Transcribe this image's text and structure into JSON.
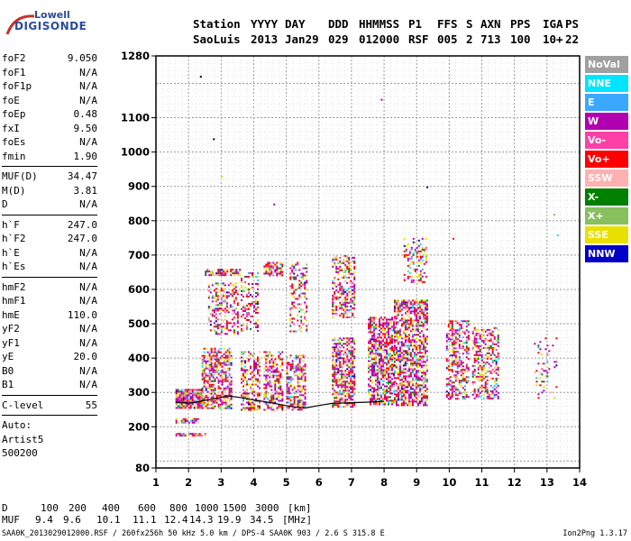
{
  "logo": {
    "line1": "Lowell",
    "line2": "DIGISONDE"
  },
  "header": {
    "labels": [
      "Station",
      "YYYY",
      "DAY",
      "DDD",
      "HHMMSS",
      "P1",
      "FFS",
      "S",
      "AXN",
      "PPS",
      "IGA",
      "PS"
    ],
    "values": [
      "SaoLuis",
      "2013",
      "Jan29",
      "029",
      "012000",
      "RSF",
      "005",
      "2",
      "713",
      "100",
      "10+",
      "22"
    ]
  },
  "params": {
    "group1": [
      {
        "label": "foF2",
        "value": "9.050"
      },
      {
        "label": "foF1",
        "value": "N/A"
      },
      {
        "label": "foF1p",
        "value": "N/A"
      },
      {
        "label": "foE",
        "value": "N/A"
      },
      {
        "label": "foEp",
        "value": "0.48"
      },
      {
        "label": "fxI",
        "value": "9.50"
      },
      {
        "label": "foEs",
        "value": "N/A"
      },
      {
        "label": "fmin",
        "value": "1.90"
      }
    ],
    "group2": [
      {
        "label": "MUF(D)",
        "value": "34.47"
      },
      {
        "label": "M(D)",
        "value": "3.81"
      },
      {
        "label": "D",
        "value": "N/A"
      }
    ],
    "group3": [
      {
        "label": "h`F",
        "value": "247.0"
      },
      {
        "label": "h`F2",
        "value": "247.0"
      },
      {
        "label": "h`E",
        "value": "N/A"
      },
      {
        "label": "h`Es",
        "value": "N/A"
      }
    ],
    "group4": [
      {
        "label": "hmF2",
        "value": "N/A"
      },
      {
        "label": "hmF1",
        "value": "N/A"
      },
      {
        "label": "hmE",
        "value": "110.0"
      },
      {
        "label": "yF2",
        "value": "N/A"
      },
      {
        "label": "yF1",
        "value": "N/A"
      },
      {
        "label": "yE",
        "value": "20.0"
      },
      {
        "label": "B0",
        "value": "N/A"
      },
      {
        "label": "B1",
        "value": "N/A"
      }
    ],
    "group5": [
      {
        "label": "C-level",
        "value": "55"
      }
    ],
    "auto": [
      "Auto:",
      "Artist5",
      "500200"
    ]
  },
  "legend": [
    {
      "label": "NoVal",
      "color": "#a0a0a0"
    },
    {
      "label": "NNE",
      "color": "#00e5ff"
    },
    {
      "label": "E",
      "color": "#3aa8ff"
    },
    {
      "label": "W",
      "color": "#b000b0"
    },
    {
      "label": "Vo-",
      "color": "#ff3fa8"
    },
    {
      "label": "Vo+",
      "color": "#ff0000"
    },
    {
      "label": "SSW",
      "color": "#ffb0b0"
    },
    {
      "label": "X-",
      "color": "#008000"
    },
    {
      "label": "X+",
      "color": "#88c060"
    },
    {
      "label": "SSE",
      "color": "#e8e000"
    },
    {
      "label": "NNW",
      "color": "#0000c8"
    }
  ],
  "footer": {
    "d_label": "D",
    "d_values": [
      "100",
      "200",
      "400",
      "600",
      "800",
      "1000",
      "1500",
      "3000",
      "[km]"
    ],
    "muf_label": "MUF",
    "muf_values": [
      "9.4",
      "9.6",
      "10.1",
      "11.1",
      "12.4",
      "14.3",
      "19.9",
      "34.5",
      "[MHz]"
    ],
    "line": "SAA0K_2013029012000.RSF / 260fx256h 50 kHz 5.0 km / DPS-4 SAA0K 903 / 2.6 S 315.8 E",
    "version": "Ion2Png 1.3.17"
  },
  "chart_data": {
    "type": "scatter",
    "x_ticks": [
      1,
      2,
      3,
      4,
      5,
      6,
      7,
      8,
      9,
      10,
      11,
      12,
      13,
      14
    ],
    "y_ticks": [
      80,
      200,
      300,
      400,
      500,
      600,
      700,
      800,
      900,
      1000,
      1100,
      1280
    ],
    "xlim": [
      1,
      14
    ],
    "ylim": [
      80,
      1280
    ],
    "grid": true,
    "legend_position": "right",
    "trace": {
      "x": [
        1.6,
        2.0,
        2.4,
        2.8,
        3.2,
        3.6,
        4.0,
        4.4,
        4.8,
        5.2,
        5.6,
        6.0,
        6.4,
        7.0,
        7.6,
        8.0
      ],
      "y": [
        272,
        268,
        275,
        282,
        290,
        285,
        278,
        272,
        265,
        258,
        255,
        262,
        268,
        270,
        272,
        274
      ]
    },
    "clusters": [
      {
        "x": [
          1.6,
          2.4
        ],
        "y": [
          255,
          310
        ],
        "density": 0.85
      },
      {
        "x": [
          1.6,
          2.3
        ],
        "y": [
          212,
          225
        ],
        "density": 0.7
      },
      {
        "x": [
          1.6,
          2.5
        ],
        "y": [
          175,
          182
        ],
        "density": 0.8
      },
      {
        "x": [
          2.4,
          3.3
        ],
        "y": [
          255,
          430
        ],
        "density": 0.55
      },
      {
        "x": [
          2.6,
          3.5
        ],
        "y": [
          470,
          620
        ],
        "density": 0.35
      },
      {
        "x": [
          2.5,
          3.6
        ],
        "y": [
          640,
          660
        ],
        "density": 0.7
      },
      {
        "x": [
          3.6,
          4.2
        ],
        "y": [
          250,
          420
        ],
        "density": 0.45
      },
      {
        "x": [
          3.6,
          4.1
        ],
        "y": [
          480,
          650
        ],
        "density": 0.3
      },
      {
        "x": [
          4.3,
          4.9
        ],
        "y": [
          250,
          420
        ],
        "density": 0.5
      },
      {
        "x": [
          4.3,
          4.9
        ],
        "y": [
          640,
          680
        ],
        "density": 0.6
      },
      {
        "x": [
          5.0,
          5.6
        ],
        "y": [
          250,
          410
        ],
        "density": 0.5
      },
      {
        "x": [
          5.1,
          5.6
        ],
        "y": [
          480,
          680
        ],
        "density": 0.3
      },
      {
        "x": [
          6.4,
          7.1
        ],
        "y": [
          260,
          460
        ],
        "density": 0.6
      },
      {
        "x": [
          6.4,
          7.1
        ],
        "y": [
          520,
          700
        ],
        "density": 0.45
      },
      {
        "x": [
          7.5,
          8.3
        ],
        "y": [
          265,
          520
        ],
        "density": 0.6
      },
      {
        "x": [
          8.3,
          9.3
        ],
        "y": [
          265,
          570
        ],
        "density": 0.6
      },
      {
        "x": [
          8.6,
          9.3
        ],
        "y": [
          620,
          750
        ],
        "density": 0.3
      },
      {
        "x": [
          9.9,
          10.6
        ],
        "y": [
          280,
          510
        ],
        "density": 0.45
      },
      {
        "x": [
          10.7,
          11.5
        ],
        "y": [
          280,
          490
        ],
        "density": 0.4
      },
      {
        "x": [
          12.6,
          13.3
        ],
        "y": [
          285,
          460
        ],
        "density": 0.12
      }
    ],
    "outliers": [
      {
        "x": 2.35,
        "y": 1222,
        "color": "#000000"
      },
      {
        "x": 2.75,
        "y": 1040,
        "color": "#000000"
      },
      {
        "x": 3.0,
        "y": 930,
        "color": "#e8e000"
      },
      {
        "x": 7.9,
        "y": 1155,
        "color": "#b000b0"
      },
      {
        "x": 9.3,
        "y": 900,
        "color": "#0000c8"
      },
      {
        "x": 4.6,
        "y": 850,
        "color": "#b000b0"
      },
      {
        "x": 13.2,
        "y": 820,
        "color": "#88c060"
      },
      {
        "x": 13.3,
        "y": 760,
        "color": "#00e5ff"
      },
      {
        "x": 10.1,
        "y": 750,
        "color": "#ff0000"
      }
    ]
  }
}
